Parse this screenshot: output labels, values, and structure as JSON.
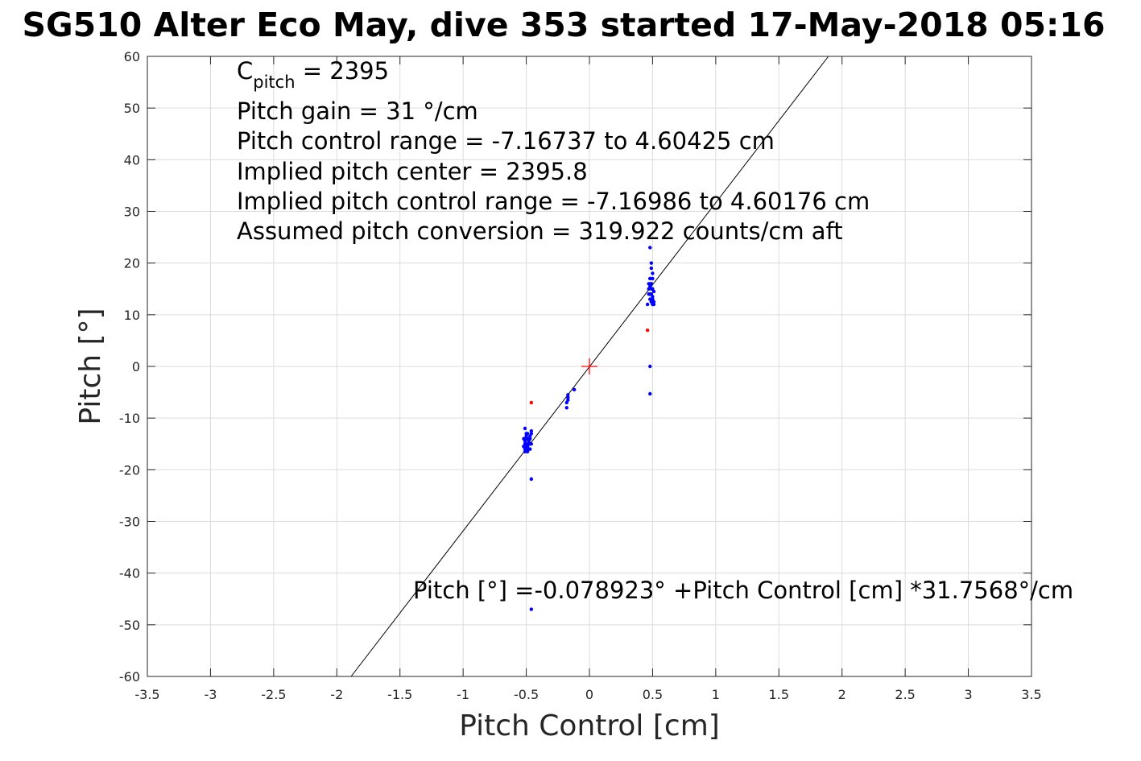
{
  "chart_data": {
    "type": "scatter",
    "title": "SG510 Alter Eco May, dive 353 started 17-May-2018 05:16",
    "xlabel": "Pitch Control [cm]",
    "ylabel": "Pitch [°]",
    "xlim": [
      -3.5,
      3.5
    ],
    "ylim": [
      -60,
      60
    ],
    "xticks": [
      -3.5,
      -3,
      -2.5,
      -2,
      -1.5,
      -1,
      -0.5,
      0,
      0.5,
      1,
      1.5,
      2,
      2.5,
      3,
      3.5
    ],
    "xtick_labels": [
      "-3.5",
      "-3",
      "-2.5",
      "-2",
      "-1.5",
      "-1",
      "-0.5",
      "0",
      "0.5",
      "1",
      "1.5",
      "2",
      "2.5",
      "3",
      "3.5"
    ],
    "yticks": [
      -60,
      -50,
      -40,
      -30,
      -20,
      -10,
      0,
      10,
      20,
      30,
      40,
      50,
      60
    ],
    "ytick_labels": [
      "-60",
      "-50",
      "-40",
      "-30",
      "-20",
      "-10",
      "0",
      "10",
      "20",
      "30",
      "40",
      "50",
      "60"
    ],
    "grid": true,
    "annotations": {
      "c_pitch_main": "C",
      "c_pitch_sub": "pitch",
      "c_pitch_value": " = 2395",
      "lines": [
        "Pitch gain = 31 °/cm",
        "Pitch control range = -7.16737 to 4.60425 cm",
        "Implied pitch center = 2395.8",
        "Implied pitch control range = -7.16986 to 4.60176 cm",
        "Assumed pitch conversion = 319.922 counts/cm aft"
      ],
      "fit_equation": "Pitch [°] =-0.078923° +Pitch Control [cm] *31.7568°/cm"
    },
    "fit_line": {
      "intercept": -0.078923,
      "slope": 31.7568,
      "color": "#000000"
    },
    "center_marker": {
      "x": 0,
      "y": 0,
      "color": "#ff0000"
    },
    "series": [
      {
        "color": "#0000ff",
        "x": [
          -0.51,
          -0.5,
          -0.52,
          -0.49,
          -0.48,
          -0.51,
          -0.5,
          -0.47,
          -0.49,
          -0.52,
          -0.5,
          -0.48,
          -0.51,
          -0.49,
          -0.47,
          -0.46,
          -0.5,
          -0.52,
          -0.48,
          -0.49,
          -0.51,
          -0.5,
          -0.47,
          -0.46,
          -0.49,
          -0.5,
          -0.48,
          -0.51,
          -0.46,
          -0.47,
          -0.46,
          -0.17,
          -0.17,
          -0.18,
          -0.17,
          -0.18,
          -0.12,
          -0.46,
          0.48,
          0.49,
          0.49,
          0.5,
          0.48,
          0.5,
          0.49,
          0.47,
          0.48,
          0.5,
          0.49,
          0.51,
          0.48,
          0.47,
          0.49,
          0.5,
          0.48,
          0.5,
          0.49,
          0.51,
          0.47,
          0.49,
          0.48,
          0.46,
          0.5,
          0.51,
          0.48,
          0.48
        ],
        "y": [
          -12,
          -13,
          -14,
          -14,
          -14.5,
          -15,
          -15,
          -15,
          -15.5,
          -15.5,
          -16,
          -16,
          -16,
          -16,
          -16,
          -15,
          -13.5,
          -15.5,
          -14,
          -13,
          -14.5,
          -15.5,
          -14,
          -13,
          -16.5,
          -14,
          -15,
          -16.5,
          -12.5,
          -13.5,
          -21.8,
          -5.5,
          -6.5,
          -7,
          -6,
          -8,
          -4.5,
          -47,
          23,
          20,
          19,
          18,
          17,
          17,
          16,
          16,
          15.5,
          15,
          15,
          14.5,
          14,
          14,
          14,
          13.5,
          13,
          13,
          12.5,
          12.5,
          15,
          16,
          17,
          12,
          12,
          12,
          0,
          -5.3
        ]
      },
      {
        "color": "#ff0000",
        "x": [
          -0.46,
          0.46
        ],
        "y": [
          -7,
          7
        ]
      }
    ]
  }
}
